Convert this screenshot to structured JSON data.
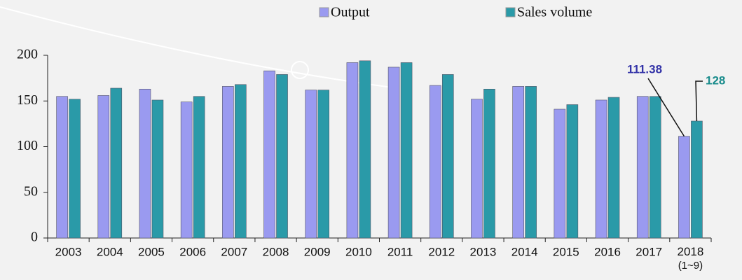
{
  "chart_data": {
    "type": "bar",
    "categories": [
      "2003",
      "2004",
      "2005",
      "2006",
      "2007",
      "2008",
      "2009",
      "2010",
      "2011",
      "2012",
      "2013",
      "2014",
      "2015",
      "2016",
      "2017",
      "2018\n(1~9)"
    ],
    "series": [
      {
        "name": "Output",
        "color": "#9a9af0",
        "values": [
          155,
          156,
          163,
          149,
          166,
          183,
          162,
          192,
          187,
          167,
          152,
          166,
          141,
          151,
          155,
          111.38
        ]
      },
      {
        "name": "Sales volume",
        "color": "#2a9aa8",
        "values": [
          152,
          164,
          151,
          155,
          168,
          179,
          162,
          194,
          192,
          179,
          163,
          166,
          146,
          154,
          155,
          128
        ]
      }
    ],
    "ylim": [
      0,
      200
    ],
    "yticks": [
      0,
      50,
      100,
      150,
      200
    ],
    "grid": false,
    "label_colors": [
      "#3434a8",
      "#1a8c8c"
    ]
  }
}
